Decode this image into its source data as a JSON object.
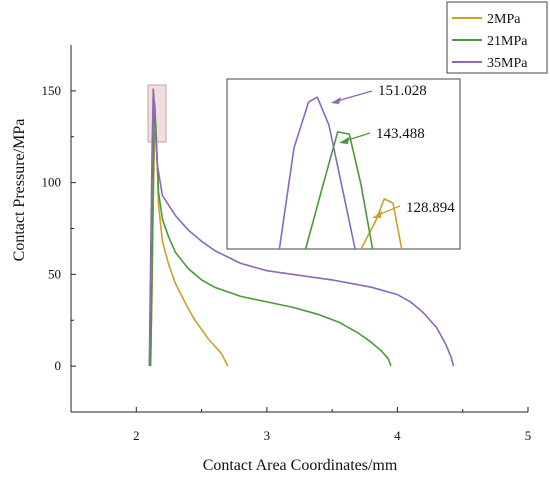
{
  "chart_data": {
    "type": "line",
    "title": "",
    "xlabel": "Contact Area Coordinates/mm",
    "ylabel": "Contact Pressure/MPa",
    "xlim": [
      1.5,
      5.0
    ],
    "ylim": [
      -25,
      175
    ],
    "x_ticks": [
      "2",
      "3",
      "4",
      "5"
    ],
    "y_ticks": [
      "0",
      "50",
      "100",
      "150"
    ],
    "grid": false,
    "legend_position": "top-right",
    "series": [
      {
        "name": "2MPa",
        "color": "#c9a227",
        "points": [
          [
            2.11,
            0
          ],
          [
            2.12,
            40
          ],
          [
            2.13,
            90
          ],
          [
            2.14,
            125
          ],
          [
            2.15,
            128.894
          ],
          [
            2.16,
            112
          ],
          [
            2.17,
            88
          ],
          [
            2.2,
            68
          ],
          [
            2.25,
            55
          ],
          [
            2.3,
            45
          ],
          [
            2.35,
            38
          ],
          [
            2.4,
            31
          ],
          [
            2.45,
            25
          ],
          [
            2.5,
            20
          ],
          [
            2.55,
            15
          ],
          [
            2.6,
            11
          ],
          [
            2.65,
            7
          ],
          [
            2.68,
            3
          ],
          [
            2.7,
            0
          ]
        ]
      },
      {
        "name": "21MPa",
        "color": "#4a9a3a",
        "points": [
          [
            2.11,
            0
          ],
          [
            2.12,
            50
          ],
          [
            2.13,
            110
          ],
          [
            2.14,
            143.488
          ],
          [
            2.15,
            130
          ],
          [
            2.17,
            95
          ],
          [
            2.2,
            80
          ],
          [
            2.25,
            70
          ],
          [
            2.3,
            62
          ],
          [
            2.4,
            53
          ],
          [
            2.5,
            47
          ],
          [
            2.6,
            43
          ],
          [
            2.8,
            38
          ],
          [
            3.0,
            35
          ],
          [
            3.2,
            32
          ],
          [
            3.4,
            28
          ],
          [
            3.55,
            24
          ],
          [
            3.7,
            18
          ],
          [
            3.8,
            13
          ],
          [
            3.88,
            8
          ],
          [
            3.93,
            4
          ],
          [
            3.95,
            0
          ]
        ]
      },
      {
        "name": "35MPa",
        "color": "#8b68b8",
        "points": [
          [
            2.1,
            0
          ],
          [
            2.11,
            55
          ],
          [
            2.12,
            115
          ],
          [
            2.13,
            151.028
          ],
          [
            2.14,
            140
          ],
          [
            2.16,
            110
          ],
          [
            2.2,
            93
          ],
          [
            2.3,
            82
          ],
          [
            2.4,
            74
          ],
          [
            2.5,
            68
          ],
          [
            2.6,
            63
          ],
          [
            2.8,
            56
          ],
          [
            3.0,
            52
          ],
          [
            3.2,
            50
          ],
          [
            3.5,
            47
          ],
          [
            3.8,
            43
          ],
          [
            4.0,
            39
          ],
          [
            4.1,
            35
          ],
          [
            4.2,
            29
          ],
          [
            4.3,
            21
          ],
          [
            4.37,
            12
          ],
          [
            4.41,
            5
          ],
          [
            4.43,
            0
          ]
        ]
      }
    ],
    "annotations": [
      {
        "label": "151.028",
        "color": "#8b68b8"
      },
      {
        "label": "143.488",
        "color": "#4a9a3a"
      },
      {
        "label": "128.894",
        "color": "#c9a227"
      }
    ]
  }
}
